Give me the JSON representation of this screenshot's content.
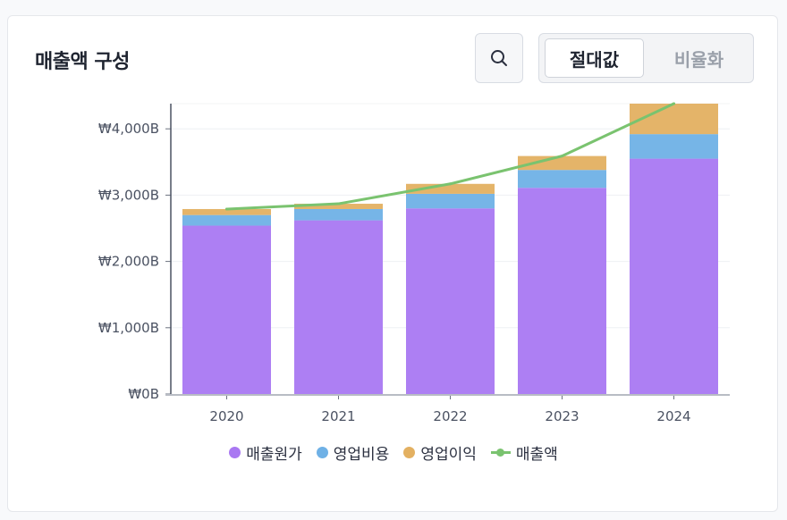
{
  "header": {
    "title": "매출액 구성"
  },
  "toolbar": {
    "search_icon": "search-icon",
    "toggle_active": "절대값",
    "toggle_inactive": "비율화"
  },
  "colors": {
    "cost": "#a978f2",
    "opex": "#6fb1e6",
    "profit": "#e3b061",
    "revenue": "#7ac36f"
  },
  "chart_data": {
    "type": "bar",
    "stacked": true,
    "categories": [
      "2020",
      "2021",
      "2022",
      "2023",
      "2024"
    ],
    "series": [
      {
        "name": "매출원가",
        "type": "bar",
        "values": [
          2540,
          2620,
          2800,
          3110,
          3550
        ]
      },
      {
        "name": "영업비용",
        "type": "bar",
        "values": [
          160,
          170,
          220,
          270,
          370
        ]
      },
      {
        "name": "영업이익",
        "type": "bar",
        "values": [
          90,
          80,
          150,
          210,
          460
        ]
      },
      {
        "name": "매출액",
        "type": "line",
        "values": [
          2790,
          2870,
          3170,
          3590,
          4380
        ]
      }
    ],
    "yticks": [
      "₩0B",
      "₩1,000B",
      "₩2,000B",
      "₩3,000B",
      "₩4,000B"
    ],
    "ylim": [
      0,
      4380
    ],
    "legend": [
      "매출원가",
      "영업비용",
      "영업이익",
      "매출액"
    ],
    "legend_position": "bottom"
  }
}
